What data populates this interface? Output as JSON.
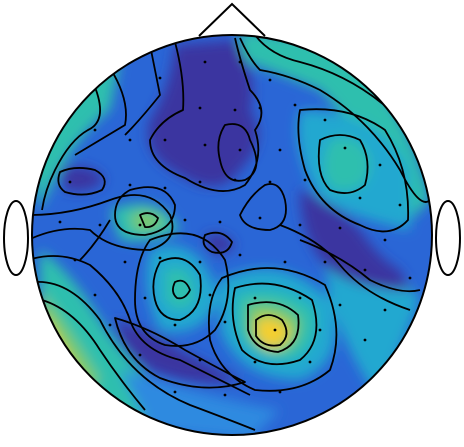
{
  "topomap": {
    "colors": {
      "background": "#ffffff",
      "outline": "#000000",
      "dark_blue": "#3a35a0",
      "blue": "#2a66d6",
      "light_blue": "#2f8ae0",
      "cyan": "#22a8d0",
      "teal": "#2fbfae",
      "green": "#7cc96a",
      "yellow": "#f5cf2f"
    }
  }
}
